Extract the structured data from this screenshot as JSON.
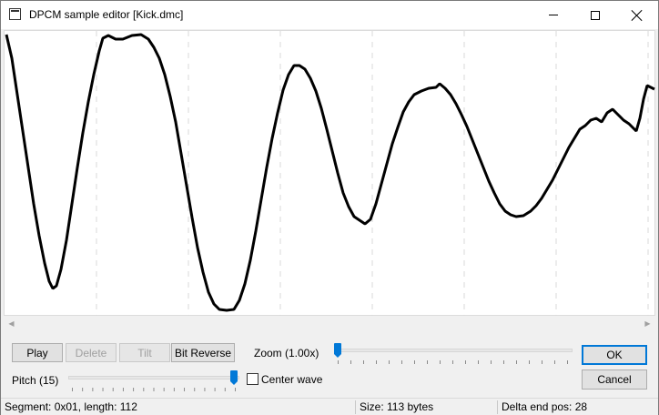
{
  "window": {
    "title": "DPCM sample editor [Kick.dmc]"
  },
  "controls": {
    "play_label": "Play",
    "delete_label": "Delete",
    "tilt_label": "Tilt",
    "bit_reverse_label": "Bit Reverse",
    "zoom_label": "Zoom (1.00x)",
    "pitch_label": "Pitch (15)",
    "center_wave_label": "Center wave",
    "center_wave_checked": false,
    "ok_label": "OK",
    "cancel_label": "Cancel"
  },
  "status": {
    "segment": "Segment: 0x01, length: 112",
    "size": "Size: 113 bytes",
    "delta_end": "Delta end pos: 28"
  },
  "colors": {
    "accent": "#0078d7",
    "wave": "#000000",
    "grid": "#d8d8d8"
  }
}
